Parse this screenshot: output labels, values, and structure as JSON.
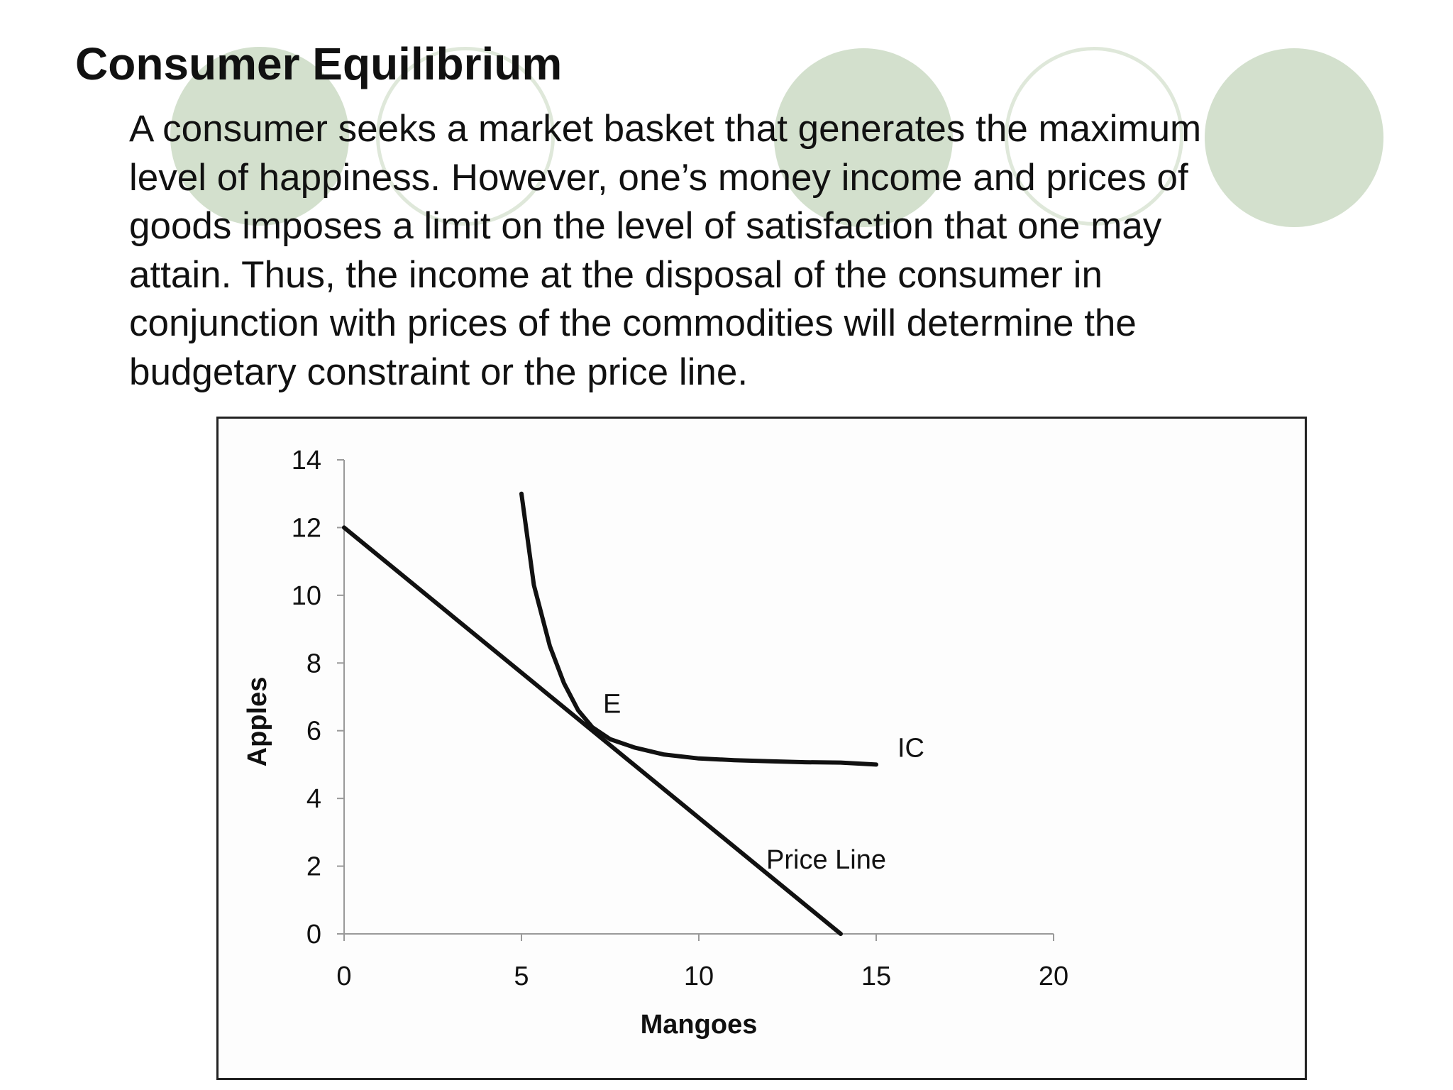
{
  "slide": {
    "title": "Consumer Equilibrium",
    "body_lines": [
      "A consumer seeks a market basket that generates the maximum",
      "level of happiness. However, one’s money income and prices of",
      "goods imposes a limit on the level of satisfaction that one may",
      "attain. Thus, the income at the disposal of the consumer in",
      "conjunction with prices of the commodities will determine the",
      "budgetary constraint or the price line."
    ],
    "decoration_color": "#d3e0cd"
  },
  "chart_data": {
    "type": "line",
    "xlabel": "Mangoes",
    "ylabel": "Apples",
    "xlim": [
      0,
      20
    ],
    "ylim": [
      0,
      14
    ],
    "x_ticks": [
      "0",
      "5",
      "10",
      "15",
      "20"
    ],
    "y_ticks": [
      "0",
      "2",
      "4",
      "6",
      "8",
      "10",
      "12",
      "14"
    ],
    "grid": false,
    "legend": "none",
    "line_color": "#111111",
    "series": [
      {
        "points": [
          [
            0,
            12
          ],
          [
            14,
            0
          ]
        ]
      },
      {
        "points": [
          [
            5,
            13
          ],
          [
            5.35,
            10.3
          ],
          [
            5.8,
            8.5
          ],
          [
            6.2,
            7.4
          ],
          [
            6.6,
            6.6
          ],
          [
            7.0,
            6.1
          ],
          [
            7.5,
            5.75
          ],
          [
            8.2,
            5.5
          ],
          [
            9.0,
            5.3
          ],
          [
            10.0,
            5.18
          ],
          [
            11.0,
            5.13
          ],
          [
            12.0,
            5.1
          ],
          [
            13.0,
            5.07
          ],
          [
            14.0,
            5.06
          ],
          [
            15,
            5.0
          ]
        ]
      }
    ],
    "annotations": [
      {
        "text": "E",
        "x": 7.3,
        "y": 6.8
      },
      {
        "text": "IC",
        "x": 15.6,
        "y": 5.5
      },
      {
        "text": "Price Line",
        "x": 11.9,
        "y": 2.2
      }
    ]
  }
}
